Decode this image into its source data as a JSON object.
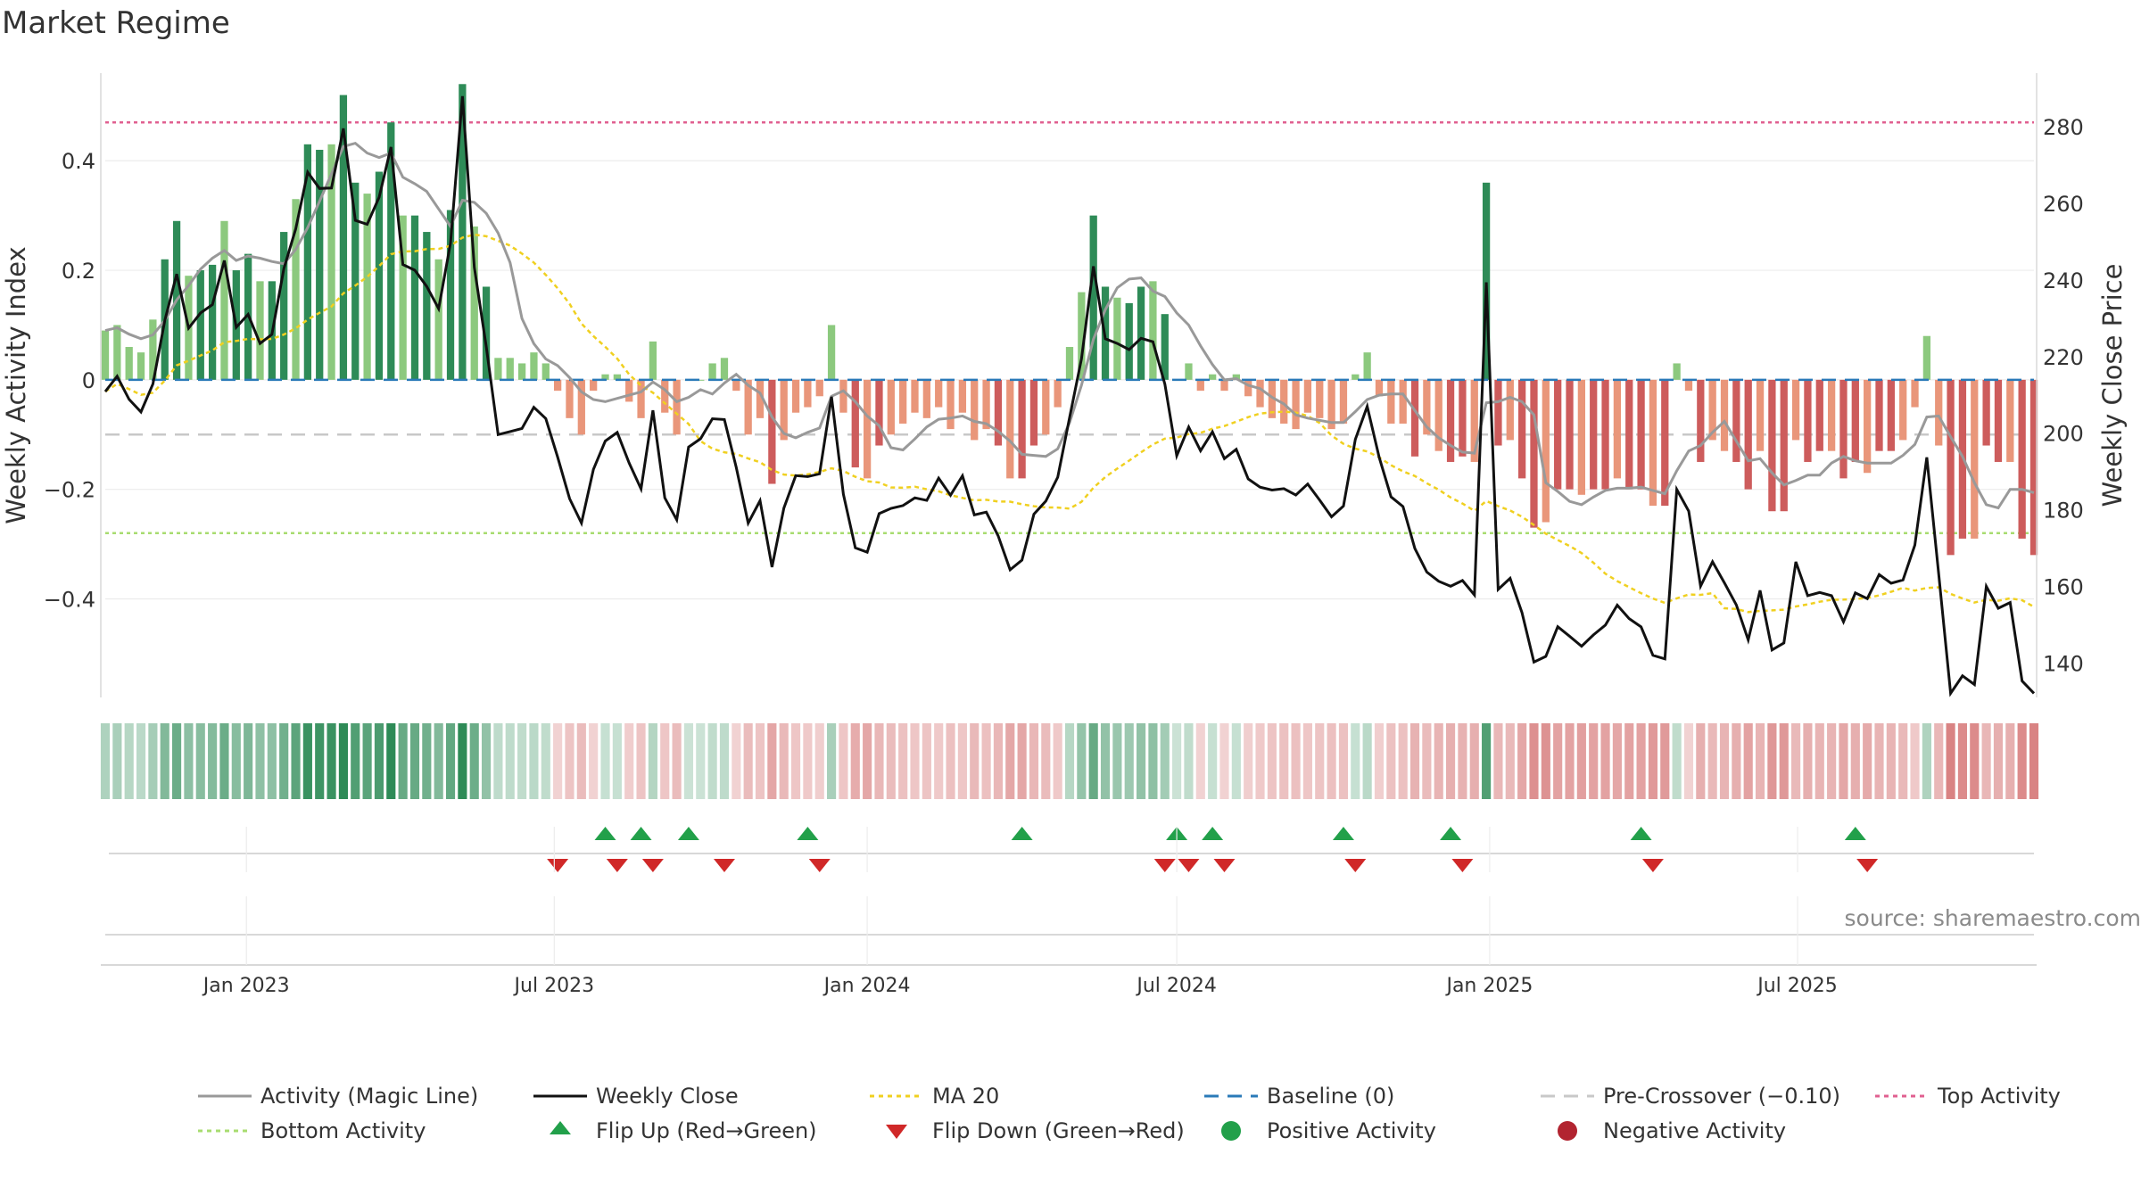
{
  "title": "Market Regime",
  "source": "source: sharemaestro.com",
  "colors": {
    "pos_dark": "#2e8b57",
    "pos_light": "#8cc97e",
    "neg_dark": "#cd5c5c",
    "neg_light": "#e9967a",
    "magic": "#999999",
    "close": "#111111",
    "ma20": "#f0d020",
    "baseline": "#2a7ab8",
    "precross": "#c8c8c8",
    "top": "#e06090",
    "bottom": "#a8dc70",
    "flip_up": "#22a04a",
    "flip_down": "#d02828"
  },
  "chart_data": {
    "type": "bar",
    "title": "Market Regime",
    "ylabel": "Weekly Activity Index",
    "ylabel_right": "Weekly Close Price",
    "ylim": [
      -0.58,
      0.56
    ],
    "ylim_right": [
      131,
      294
    ],
    "yticks": [
      {
        "v": 0.4,
        "t": "0.4"
      },
      {
        "v": 0.2,
        "t": "0.2"
      },
      {
        "v": 0,
        "t": "0"
      },
      {
        "v": -0.2,
        "t": "−0.2"
      },
      {
        "v": -0.4,
        "t": "−0.4"
      }
    ],
    "yticks_right": [
      140,
      160,
      180,
      200,
      220,
      240,
      260,
      280
    ],
    "x_start": "2022-10-10",
    "x_week_days": 7,
    "xticks": [
      {
        "date": "2023-01-01",
        "label": "Jan 2023"
      },
      {
        "date": "2023-07-01",
        "label": "Jul 2023"
      },
      {
        "date": "2024-01-01",
        "label": "Jan 2024"
      },
      {
        "date": "2024-07-01",
        "label": "Jul 2024"
      },
      {
        "date": "2025-01-01",
        "label": "Jan 2025"
      },
      {
        "date": "2025-07-01",
        "label": "Jul 2025"
      }
    ],
    "reference_lines": {
      "baseline": 0,
      "pre_crossover": -0.1,
      "top_activity": 0.47,
      "bottom_activity": -0.28
    },
    "grid": true,
    "legend_position": "bottom",
    "activity": [
      0.09,
      0.1,
      0.06,
      0.05,
      0.11,
      0.22,
      0.29,
      0.19,
      0.2,
      0.21,
      0.29,
      0.2,
      0.23,
      0.18,
      0.18,
      0.27,
      0.33,
      0.43,
      0.42,
      0.43,
      0.52,
      0.36,
      0.34,
      0.38,
      0.47,
      0.3,
      0.3,
      0.27,
      0.22,
      0.31,
      0.54,
      0.28,
      0.17,
      0.04,
      0.04,
      0.03,
      0.05,
      0.03,
      -0.02,
      -0.07,
      -0.1,
      -0.02,
      0.01,
      0.01,
      -0.04,
      -0.07,
      0.07,
      -0.06,
      -0.1,
      0,
      0,
      0.03,
      0.04,
      -0.02,
      -0.1,
      -0.07,
      -0.19,
      -0.11,
      -0.06,
      -0.05,
      -0.03,
      0.1,
      -0.06,
      -0.16,
      -0.18,
      -0.12,
      -0.1,
      -0.08,
      -0.06,
      -0.07,
      -0.05,
      -0.09,
      -0.06,
      -0.11,
      -0.09,
      -0.12,
      -0.18,
      -0.18,
      -0.12,
      -0.1,
      -0.05,
      0.06,
      0.16,
      0.3,
      0.17,
      0.15,
      0.14,
      0.17,
      0.18,
      0.12,
      0,
      0.03,
      -0.02,
      0.01,
      -0.02,
      0.01,
      -0.03,
      -0.05,
      -0.07,
      -0.08,
      -0.09,
      -0.06,
      -0.07,
      -0.09,
      -0.08,
      0.01,
      0.05,
      -0.03,
      -0.08,
      -0.08,
      -0.14,
      -0.1,
      -0.13,
      -0.15,
      -0.14,
      -0.15,
      0.36,
      -0.12,
      -0.11,
      -0.18,
      -0.27,
      -0.26,
      -0.2,
      -0.2,
      -0.21,
      -0.2,
      -0.2,
      -0.18,
      -0.2,
      -0.2,
      -0.23,
      -0.23,
      0.03,
      -0.02,
      -0.15,
      -0.11,
      -0.13,
      -0.15,
      -0.2,
      -0.13,
      -0.24,
      -0.24,
      -0.11,
      -0.15,
      -0.13,
      -0.13,
      -0.18,
      -0.15,
      -0.17,
      -0.13,
      -0.13,
      -0.11,
      -0.05,
      0.08,
      -0.12,
      -0.32,
      -0.29,
      -0.29,
      -0.12,
      -0.15,
      -0.15,
      -0.29,
      -0.32
    ],
    "flip_up_weeks": [
      42,
      45,
      49,
      59,
      77,
      90,
      93,
      104,
      113,
      129,
      147
    ],
    "flip_down_weeks": [
      38,
      43,
      46,
      52,
      60,
      89,
      91,
      94,
      105,
      114,
      130,
      148
    ]
  }
}
